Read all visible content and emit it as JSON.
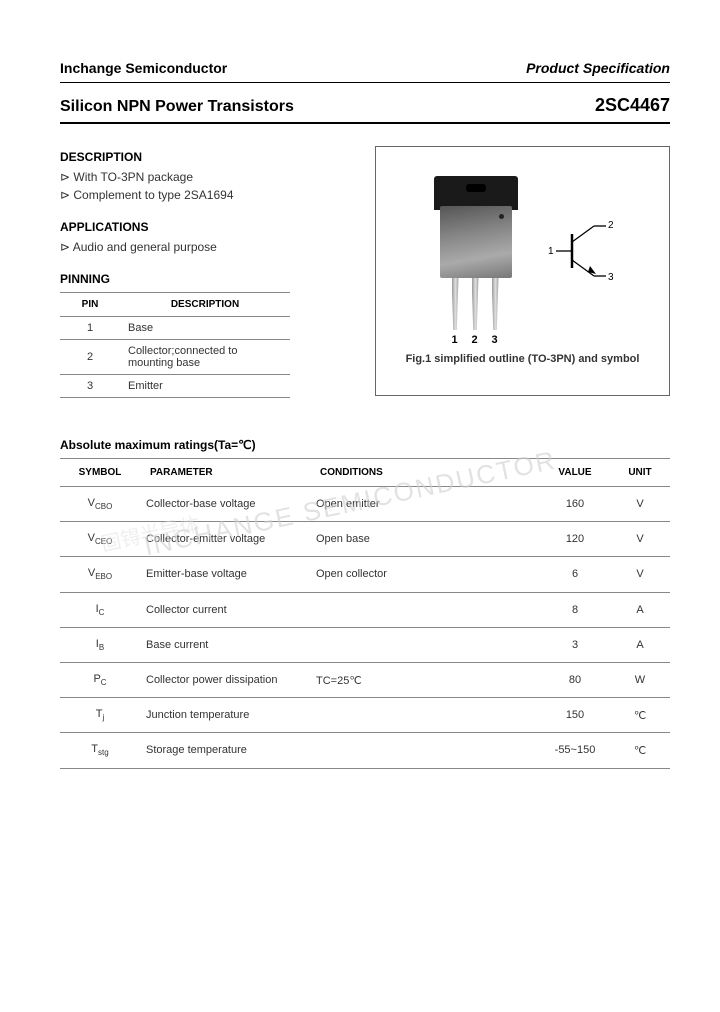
{
  "header": {
    "left": "Inchange Semiconductor",
    "right": "Product Specification"
  },
  "title": {
    "left": "Silicon NPN Power Transistors",
    "right": "2SC4467"
  },
  "description": {
    "heading": "DESCRIPTION",
    "items": [
      "With TO-3PN package",
      "Complement to type 2SA1694"
    ]
  },
  "applications": {
    "heading": "APPLICATIONS",
    "items": [
      "Audio and general purpose"
    ]
  },
  "pinning": {
    "heading": "PINNING",
    "columns": [
      "PIN",
      "DESCRIPTION"
    ],
    "rows": [
      {
        "pin": "1",
        "desc": "Base"
      },
      {
        "pin": "2",
        "desc": "Collector;connected to mounting base"
      },
      {
        "pin": "3",
        "desc": "Emitter"
      }
    ]
  },
  "figure": {
    "caption": "Fig.1 simplified outline (TO-3PN) and symbol",
    "pin_labels": [
      "1",
      "2",
      "3"
    ],
    "symbol_labels": {
      "base": "1",
      "collector": "2",
      "emitter": "3"
    }
  },
  "ratings": {
    "heading": "Absolute maximum ratings(Ta=℃)",
    "columns": [
      "SYMBOL",
      "PARAMETER",
      "CONDITIONS",
      "VALUE",
      "UNIT"
    ],
    "rows": [
      {
        "symbol": "V",
        "sub": "CBO",
        "param": "Collector-base voltage",
        "cond": "Open emitter",
        "value": "160",
        "unit": "V"
      },
      {
        "symbol": "V",
        "sub": "CEO",
        "param": "Collector-emitter voltage",
        "cond": "Open base",
        "value": "120",
        "unit": "V"
      },
      {
        "symbol": "V",
        "sub": "EBO",
        "param": "Emitter-base voltage",
        "cond": "Open collector",
        "value": "6",
        "unit": "V"
      },
      {
        "symbol": "I",
        "sub": "C",
        "param": "Collector current",
        "cond": "",
        "value": "8",
        "unit": "A"
      },
      {
        "symbol": "I",
        "sub": "B",
        "param": "Base current",
        "cond": "",
        "value": "3",
        "unit": "A"
      },
      {
        "symbol": "P",
        "sub": "C",
        "param": "Collector power dissipation",
        "cond": "TC=25℃",
        "value": "80",
        "unit": "W"
      },
      {
        "symbol": "T",
        "sub": "j",
        "param": "Junction temperature",
        "cond": "",
        "value": "150",
        "unit": "℃"
      },
      {
        "symbol": "T",
        "sub": "stg",
        "param": "Storage temperature",
        "cond": "",
        "value": "-55~150",
        "unit": "℃"
      }
    ]
  },
  "watermark": {
    "text1": "INCHANGE SEMICONDUCTOR",
    "text2": "固锝半导体"
  },
  "colors": {
    "text": "#333333",
    "border": "#888888",
    "heavy_border": "#000000",
    "watermark": "#d0d0d0"
  }
}
